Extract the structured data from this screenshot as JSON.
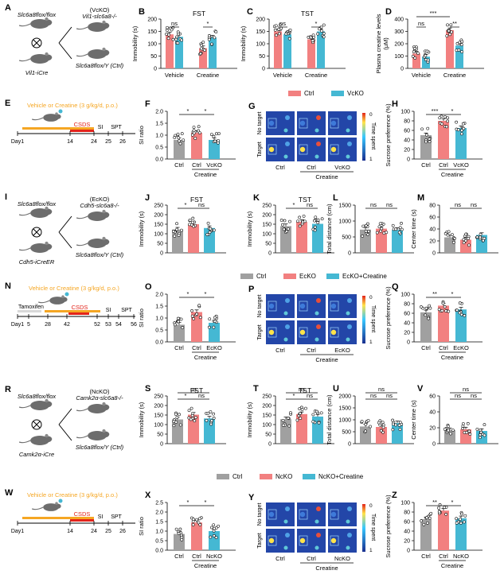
{
  "figure": {
    "colors": {
      "ctrl": "#a0a0a0",
      "ko": "#f28080",
      "kocr": "#45b8d3",
      "orange": "#f5a623",
      "red": "#e3241b",
      "mouse": "#6d6d6d"
    },
    "row1": {
      "A": {
        "letter": "A",
        "flox": "Slc6a8flox/flox",
        "cre": "Vil1-iCre",
        "ko_label": "(VcKO)",
        "ko_geno": "Vil1-slc6a8-/-",
        "ctrl_geno": "Slc6a8flox/Y (Ctrl)"
      },
      "B": {
        "letter": "B",
        "title": "FST",
        "ylabel": "Immobility (s)",
        "ylim": [
          0,
          200
        ],
        "ticks": [
          "0",
          "50",
          "100",
          "150",
          "200"
        ],
        "groups": [
          "Vehicle",
          "Creatine"
        ],
        "bars": [
          {
            "key": "ko",
            "v": 138
          },
          {
            "key": "kocr",
            "v": 128
          },
          {
            "key": "ko",
            "v": 82
          },
          {
            "key": "kocr",
            "v": 125
          }
        ],
        "sig": [
          {
            "label": "ns"
          },
          {
            "label": "*"
          }
        ]
      },
      "C": {
        "letter": "C",
        "title": "TST",
        "ylabel": "Immobility (s)",
        "ylim": [
          0,
          200
        ],
        "ticks": [
          "0",
          "50",
          "100",
          "150",
          "200"
        ],
        "groups": [
          "Vehicle",
          "Creatine"
        ],
        "bars": [
          {
            "key": "ko",
            "v": 150
          },
          {
            "key": "kocr",
            "v": 138
          },
          {
            "key": "ko",
            "v": 118
          },
          {
            "key": "kocr",
            "v": 150
          }
        ],
        "sig": [
          {
            "label": "ns"
          },
          {
            "label": "*"
          }
        ]
      },
      "D": {
        "letter": "D",
        "ylabel": "Plasma creatine levels (μM)",
        "ylim": [
          0,
          400
        ],
        "ticks": [
          "0",
          "100",
          "200",
          "300",
          "400"
        ],
        "groups": [
          "Vehicle",
          "Creatine"
        ],
        "bars": [
          {
            "key": "ko",
            "v": 120
          },
          {
            "key": "kocr",
            "v": 95
          },
          {
            "key": "ko",
            "v": 310
          },
          {
            "key": "kocr",
            "v": 185
          }
        ],
        "sig": [
          {
            "label": "ns"
          },
          {
            "label": "***"
          },
          {
            "label": "**"
          }
        ]
      },
      "legend": [
        {
          "key": "ko",
          "label": "Ctrl"
        },
        {
          "key": "kocr",
          "label": "VcKO"
        }
      ]
    },
    "row2": {
      "E": {
        "letter": "E",
        "treat": "Vehicle or Creatine (3 g/kg/d, p.o.)",
        "csds": "CSDS",
        "si": "SI",
        "spt": "SPT",
        "days": [
          "Day1",
          "14",
          "24",
          "25",
          "26"
        ]
      },
      "F": {
        "letter": "F",
        "ylabel": "SI ratio",
        "ylim": [
          0,
          2.0
        ],
        "ticks": [
          "0.0",
          "0.5",
          "1.0",
          "1.5",
          "2.0"
        ],
        "bars": [
          {
            "key": "ctrl",
            "v": 0.8
          },
          {
            "key": "ko",
            "v": 1.1
          },
          {
            "key": "kocr",
            "v": 0.8
          }
        ],
        "labels": [
          "Ctrl",
          "Ctrl",
          "VcKO"
        ],
        "under": "Creatine",
        "sig": [
          {
            "label": "*"
          },
          {
            "label": "*"
          }
        ]
      },
      "G": {
        "letter": "G",
        "rows": [
          "No target",
          "Target"
        ],
        "cols": [
          "Ctrl",
          "Ctrl",
          "VcKO"
        ],
        "under": "Creatine",
        "scale": "Time spent",
        "min": "0",
        "max": "1"
      },
      "H": {
        "letter": "H",
        "ylabel": "Sucrose preference (%)",
        "ylim": [
          0,
          100
        ],
        "ticks": [
          "0",
          "20",
          "40",
          "60",
          "80",
          "100"
        ],
        "bars": [
          {
            "key": "ctrl",
            "v": 50
          },
          {
            "key": "ko",
            "v": 80
          },
          {
            "key": "kocr",
            "v": 65
          }
        ],
        "labels": [
          "Ctrl",
          "Ctrl",
          "VcKO"
        ],
        "under": "Creatine",
        "sig": [
          {
            "label": "***"
          },
          {
            "label": "*"
          }
        ]
      }
    },
    "row3": {
      "I": {
        "letter": "I",
        "flox": "Slc6a8flox/flox",
        "cre": "Cdh5-iCreER",
        "ko_label": "(EcKO)",
        "ko_geno": "Cdh5-slc6a8-/-",
        "ctrl_geno": "Slc6a8flox/Y (Ctrl)"
      },
      "J": {
        "letter": "J",
        "title": "FST",
        "ylabel": "Immobility (s)",
        "ylim": [
          0,
          250
        ],
        "ticks": [
          "0",
          "50",
          "100",
          "150",
          "200",
          "250"
        ],
        "bars": [
          {
            "key": "ctrl",
            "v": 122
          },
          {
            "key": "ko",
            "v": 150
          },
          {
            "key": "kocr",
            "v": 130
          }
        ],
        "sig": [
          {
            "label": "*"
          },
          {
            "label": "ns"
          }
        ]
      },
      "K": {
        "letter": "K",
        "title": "TST",
        "ylabel": "Immobility (s)",
        "ylim": [
          0,
          250
        ],
        "ticks": [
          "0",
          "50",
          "100",
          "150",
          "200",
          "250"
        ],
        "bars": [
          {
            "key": "ctrl",
            "v": 140
          },
          {
            "key": "ko",
            "v": 162
          },
          {
            "key": "kocr",
            "v": 152
          }
        ],
        "sig": [
          {
            "label": "*"
          },
          {
            "label": "ns"
          }
        ]
      },
      "L": {
        "letter": "L",
        "ylabel": "Total distance (cm)",
        "ylim": [
          0,
          1500
        ],
        "ticks": [
          "0",
          "500",
          "1000",
          "1500"
        ],
        "bars": [
          {
            "key": "ctrl",
            "v": 730
          },
          {
            "key": "ko",
            "v": 760
          },
          {
            "key": "kocr",
            "v": 720
          }
        ],
        "sig": [
          {
            "label": "ns"
          },
          {
            "label": "ns"
          }
        ]
      },
      "M": {
        "letter": "M",
        "ylabel": "Center time (s)",
        "ylim": [
          0,
          80
        ],
        "ticks": [
          "0",
          "20",
          "40",
          "60",
          "80"
        ],
        "bars": [
          {
            "key": "ctrl",
            "v": 26
          },
          {
            "key": "ko",
            "v": 22
          },
          {
            "key": "kocr",
            "v": 30
          }
        ],
        "sig": [
          {
            "label": "ns"
          },
          {
            "label": "ns"
          }
        ]
      },
      "legend": [
        {
          "key": "ctrl",
          "label": "Ctrl"
        },
        {
          "key": "ko",
          "label": "EcKO"
        },
        {
          "key": "kocr",
          "label": "EcKO+Creatine"
        }
      ]
    },
    "row4": {
      "N": {
        "letter": "N",
        "treat": "Vehicle or Creatine (3 g/kg/d, p.o.)",
        "tam": "Tamoxifen",
        "csds": "CSDS",
        "si": "SI",
        "spt": "SPT",
        "days": [
          "Day1",
          "5",
          "28",
          "42",
          "52",
          "53",
          "54",
          "56"
        ]
      },
      "O": {
        "letter": "O",
        "ylabel": "SI ratio",
        "ylim": [
          0,
          2.0
        ],
        "ticks": [
          "0.0",
          "0.5",
          "1.0",
          "1.5",
          "2.0"
        ],
        "bars": [
          {
            "key": "ctrl",
            "v": 0.72
          },
          {
            "key": "ko",
            "v": 1.25
          },
          {
            "key": "kocr",
            "v": 0.8
          }
        ],
        "labels": [
          "Ctrl",
          "Ctrl",
          "EcKO"
        ],
        "under": "Creatine",
        "sig": [
          {
            "label": "*"
          },
          {
            "label": "*"
          }
        ]
      },
      "P": {
        "letter": "P",
        "rows": [
          "No target",
          "Target"
        ],
        "cols": [
          "Ctrl",
          "Ctrl",
          "EcKO"
        ],
        "under": "Creatine",
        "scale": "Time spent",
        "min": "0",
        "max": "1"
      },
      "Q": {
        "letter": "Q",
        "ylabel": "Sucrose preference (%)",
        "ylim": [
          0,
          100
        ],
        "ticks": [
          "0",
          "20",
          "40",
          "60",
          "80",
          "100"
        ],
        "bars": [
          {
            "key": "ctrl",
            "v": 62
          },
          {
            "key": "ko",
            "v": 76
          },
          {
            "key": "kocr",
            "v": 68
          }
        ],
        "labels": [
          "Ctrl",
          "Ctrl",
          "EcKO"
        ],
        "under": "Creatine",
        "sig": [
          {
            "label": "**"
          },
          {
            "label": "*"
          }
        ]
      }
    },
    "row5": {
      "R": {
        "letter": "R",
        "flox": "Slc6a8flox/flox",
        "cre": "Camk2α-iCre",
        "ko_label": "(NcKO)",
        "ko_geno": "Camk2α-slc6a8-/-",
        "ctrl_geno": "Slc6a8flox/Y (Ctrl)"
      },
      "S": {
        "letter": "S",
        "title": "FST",
        "ylabel": "Immobility (s)",
        "ylim": [
          0,
          250
        ],
        "ticks": [
          "0",
          "50",
          "100",
          "150",
          "200",
          "250"
        ],
        "bars": [
          {
            "key": "ctrl",
            "v": 127
          },
          {
            "key": "ko",
            "v": 152
          },
          {
            "key": "kocr",
            "v": 132
          }
        ],
        "sig": [
          {
            "label": "*"
          },
          {
            "label": "ns"
          },
          {
            "label": "ns"
          }
        ]
      },
      "T": {
        "letter": "T",
        "title": "TST",
        "ylabel": "Immobility (s)",
        "ylim": [
          0,
          250
        ],
        "ticks": [
          "0",
          "50",
          "100",
          "150",
          "200",
          "250"
        ],
        "bars": [
          {
            "key": "ctrl",
            "v": 128
          },
          {
            "key": "ko",
            "v": 155
          },
          {
            "key": "kocr",
            "v": 142
          }
        ],
        "sig": [
          {
            "label": "*"
          },
          {
            "label": "ns"
          },
          {
            "label": "ns"
          }
        ]
      },
      "U": {
        "letter": "U",
        "ylabel": "Total distance (cm)",
        "ylim": [
          0,
          2000
        ],
        "ticks": [
          "0",
          "500",
          "1000",
          "1500",
          "2000"
        ],
        "bars": [
          {
            "key": "ctrl",
            "v": 720
          },
          {
            "key": "ko",
            "v": 700
          },
          {
            "key": "kocr",
            "v": 860
          }
        ],
        "sig": [
          {
            "label": "ns"
          },
          {
            "label": "ns"
          },
          {
            "label": "ns"
          }
        ]
      },
      "V": {
        "letter": "V",
        "ylabel": "Center time (s)",
        "ylim": [
          0,
          60
        ],
        "ticks": [
          "0",
          "20",
          "40",
          "60"
        ],
        "bars": [
          {
            "key": "ctrl",
            "v": 17
          },
          {
            "key": "ko",
            "v": 18
          },
          {
            "key": "kocr",
            "v": 16
          }
        ],
        "sig": [
          {
            "label": "ns"
          },
          {
            "label": "ns"
          },
          {
            "label": "ns"
          }
        ]
      },
      "legend": [
        {
          "key": "ctrl",
          "label": "Ctrl"
        },
        {
          "key": "ko",
          "label": "NcKO"
        },
        {
          "key": "kocr",
          "label": "NcKO+Creatine"
        }
      ]
    },
    "row6": {
      "W": {
        "letter": "W",
        "treat": "Vehicle or Creatine (3 g/kg/d, p.o.)",
        "csds": "CSDS",
        "si": "SI",
        "spt": "SPT",
        "days": [
          "Day1",
          "14",
          "24",
          "25",
          "26"
        ]
      },
      "X": {
        "letter": "X",
        "ylabel": "SI ratio",
        "ylim": [
          0,
          2.5
        ],
        "ticks": [
          "0.0",
          "0.5",
          "1.0",
          "1.5",
          "2.0",
          "2.5"
        ],
        "bars": [
          {
            "key": "ctrl",
            "v": 0.85
          },
          {
            "key": "ko",
            "v": 1.45
          },
          {
            "key": "kocr",
            "v": 1.0
          }
        ],
        "labels": [
          "Ctrl",
          "Ctrl",
          "NcKO"
        ],
        "under": "Creatine",
        "sig": [
          {
            "label": "*"
          },
          {
            "label": "*"
          }
        ]
      },
      "Y": {
        "letter": "Y",
        "rows": [
          "No target",
          "Target"
        ],
        "cols": [
          "Ctrl",
          "Ctrl",
          "NcKO"
        ],
        "under": "Creatine",
        "scale": "Time spent",
        "min": "0",
        "max": "1"
      },
      "Z": {
        "letter": "Z",
        "ylabel": "Sucrose preference (%)",
        "ylim": [
          0,
          100
        ],
        "ticks": [
          "0",
          "20",
          "40",
          "60",
          "80",
          "100"
        ],
        "bars": [
          {
            "key": "ctrl",
            "v": 65
          },
          {
            "key": "ko",
            "v": 83
          },
          {
            "key": "kocr",
            "v": 67
          }
        ],
        "labels": [
          "Ctrl",
          "Ctrl",
          "NcKO"
        ],
        "under": "Creatine",
        "sig": [
          {
            "label": "**"
          },
          {
            "label": "*"
          }
        ]
      }
    }
  }
}
